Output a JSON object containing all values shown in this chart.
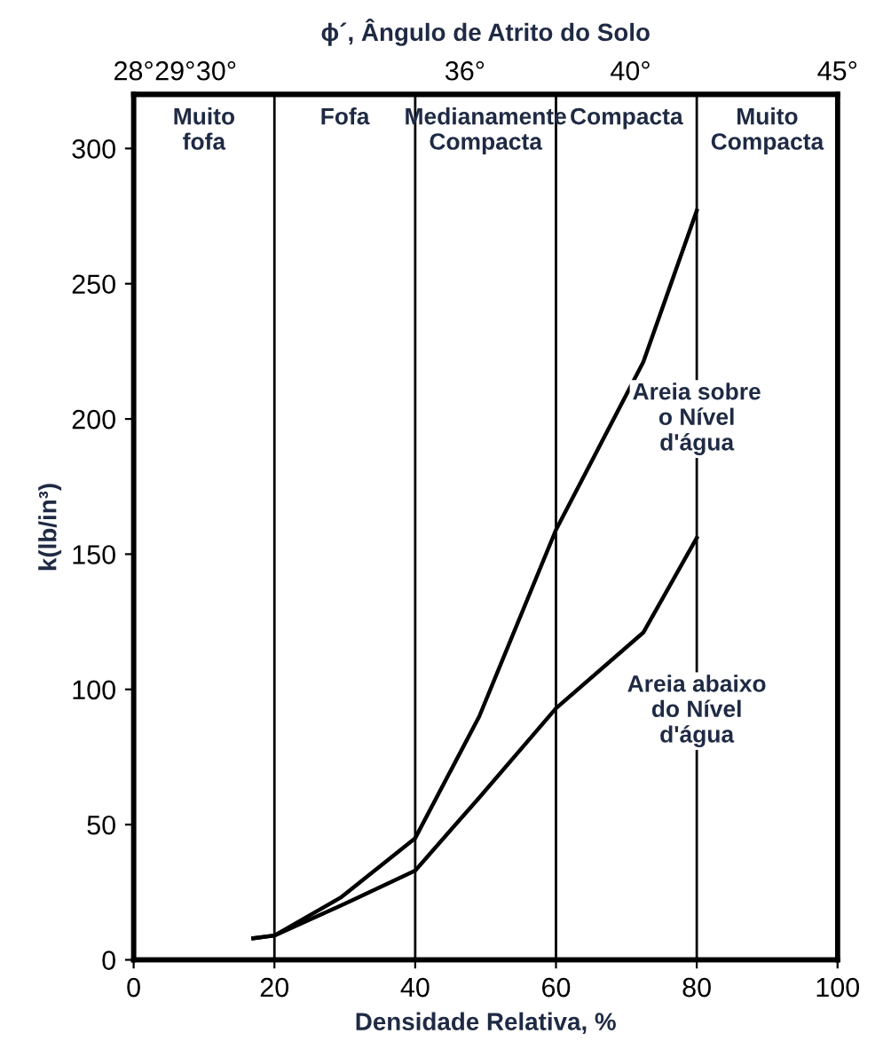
{
  "chart_data": {
    "type": "line",
    "x2label": "ϕ´, Ângulo de Atrito do Solo",
    "xlabel": "Densidade Relativa, %",
    "ylabel": "k(lb/in³)",
    "xlim": [
      0,
      100
    ],
    "xticks": [
      0,
      20,
      40,
      60,
      80,
      100
    ],
    "ylim": [
      0,
      320
    ],
    "yticks": [
      0,
      50,
      100,
      150,
      200,
      250,
      300
    ],
    "x2lim": [
      28,
      45
    ],
    "x2ticks": [
      {
        "value": 28,
        "label": "28°"
      },
      {
        "value": 29,
        "label": "29°"
      },
      {
        "value": 30,
        "label": "30°"
      },
      {
        "value": 36,
        "label": "36°"
      },
      {
        "value": 40,
        "label": "40°"
      },
      {
        "value": 45,
        "label": "45°"
      }
    ],
    "series": [
      {
        "color": "#000000",
        "x": [
          17,
          20,
          29.4,
          40,
          49.1,
          60,
          72.4,
          80
        ],
        "values": [
          8,
          9,
          23,
          45,
          90,
          159,
          221,
          277
        ]
      },
      {
        "color": "#000000",
        "x": [
          17,
          20,
          29.4,
          40,
          49.1,
          60,
          72.4,
          80
        ],
        "values": [
          8,
          9,
          20,
          33,
          60,
          93,
          121,
          156
        ]
      }
    ],
    "ref_lines": [
      {
        "axis": "x",
        "value": 20
      },
      {
        "axis": "x",
        "value": 40
      },
      {
        "axis": "x",
        "value": 60
      },
      {
        "axis": "x",
        "value": 80
      }
    ],
    "annotations": [
      "Muito\nfofa",
      "Fofa",
      "Medianamente\nCompacta",
      "Compacta",
      "Muito\nCompacta",
      {
        "text": "Areia sobre\no Nível\nd'água",
        "x": 80,
        "y": 200
      },
      {
        "text": "Areia abaixo\ndo Nível\nd'água",
        "x": 80,
        "y": 92
      }
    ],
    "grid": false,
    "legend": false,
    "marker": "none",
    "line_style": "solid"
  }
}
